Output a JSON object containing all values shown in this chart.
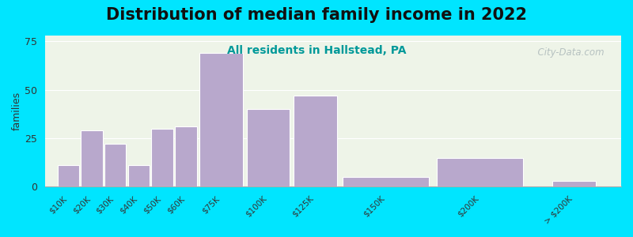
{
  "title": "Distribution of median family income in 2022",
  "subtitle": "All residents in Hallstead, PA",
  "ylabel": "families",
  "background_outer": "#00e5ff",
  "background_inner": "#eef4e8",
  "bar_color": "#b8a8cc",
  "bar_edge_color": "#ffffff",
  "categories": [
    "$10K",
    "$20K",
    "$30K",
    "$40K",
    "$50K",
    "$60K",
    "$75K",
    "$100K",
    "$125K",
    "$150K",
    "$200K",
    "> $200K"
  ],
  "values": [
    11,
    29,
    22,
    11,
    30,
    31,
    69,
    40,
    47,
    5,
    15,
    3
  ],
  "bar_positions": [
    0,
    1,
    2,
    3,
    4,
    5,
    6,
    8,
    10,
    12,
    16,
    21
  ],
  "bar_widths": [
    1,
    1,
    1,
    1,
    1,
    1,
    2,
    2,
    2,
    4,
    4,
    2
  ],
  "xlim": [
    -0.5,
    24
  ],
  "ylim": [
    0,
    78
  ],
  "yticks": [
    0,
    25,
    50,
    75
  ],
  "title_fontsize": 15,
  "subtitle_fontsize": 10,
  "subtitle_color": "#009999",
  "ylabel_fontsize": 9,
  "tick_label_fontsize": 7.5,
  "watermark_text": "  City-Data.com",
  "watermark_color": "#b0bcbc",
  "grid_color": "#ffffff",
  "title_fontweight": "bold"
}
